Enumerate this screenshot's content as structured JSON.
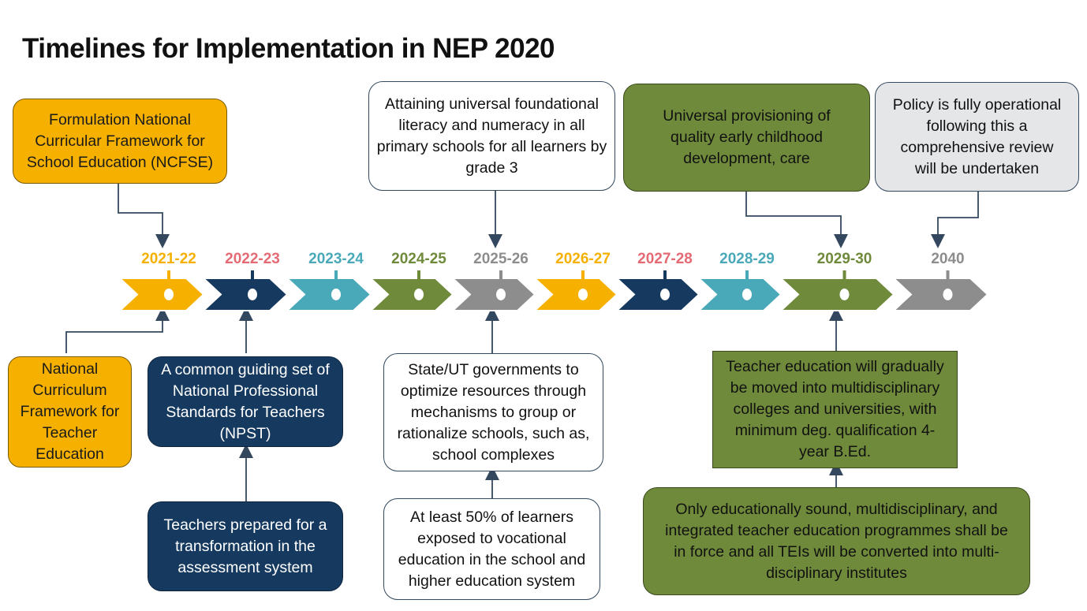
{
  "title": "Timelines for Implementation in NEP 2020",
  "colors": {
    "orange": "#f6b100",
    "navy": "#163a5f",
    "teal": "#4aa9b9",
    "green": "#6f8a3a",
    "grey": "#8d8d8d",
    "coral": "#e46a74"
  },
  "years": [
    "2021-22",
    "2022-23",
    "2023-24",
    "2024-25",
    "2025-26",
    "2026-27",
    "2027-28",
    "2028-29",
    "2029-30",
    "2040"
  ],
  "boxes": {
    "ncfse": "Formulation National Curricular Framework for School Education (NCFSE)",
    "flnumeracy": "Attaining universal foundational literacy and numeracy in all primary schools for all learners by grade 3",
    "ecce": "Universal provisioning of quality early childhood development, care",
    "policy": "Policy is fully operational following this a comprehensive review will be undertaken",
    "ncfte": "National Curriculum Framework for Teacher Education",
    "npst": "A common guiding set of National Professional Standards for Teachers (NPST)",
    "assessment": "Teachers prepared for a transformation in the assessment system",
    "complexes": "State/UT governments to optimize resources through mechanisms to group or rationalize schools, such as, school complexes",
    "vocational": "At least 50% of learners exposed to vocational education in the school and higher education system",
    "teacher_ed": "Teacher education will gradually be moved into multidisciplinary colleges and universities, with minimum deg. qualification 4-year B.Ed.",
    "tei": "Only educationally sound, multidisciplinary, and integrated teacher education programmes shall be in force and all TEIs will be converted into multi-disciplinary institutes"
  }
}
